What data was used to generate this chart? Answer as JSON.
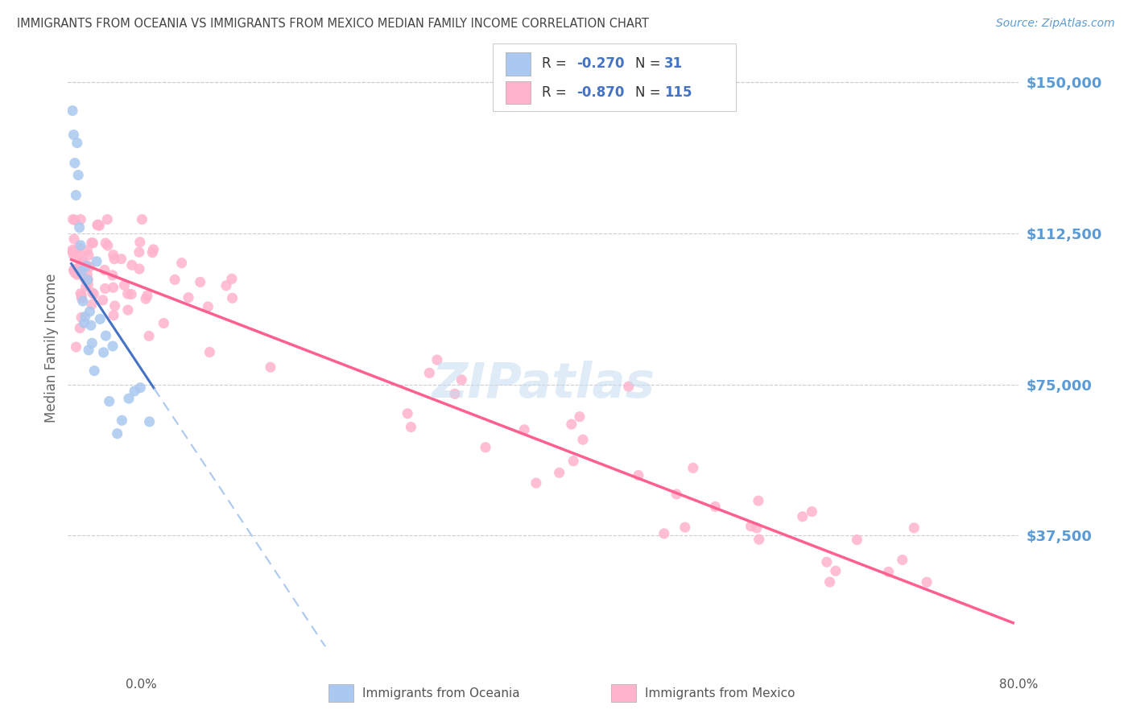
{
  "title": "IMMIGRANTS FROM OCEANIA VS IMMIGRANTS FROM MEXICO MEDIAN FAMILY INCOME CORRELATION CHART",
  "source": "Source: ZipAtlas.com",
  "ylabel": "Median Family Income",
  "ytick_labels": [
    "$37,500",
    "$75,000",
    "$112,500",
    "$150,000"
  ],
  "ytick_values": [
    37500,
    75000,
    112500,
    150000
  ],
  "ymin": 10000,
  "ymax": 158000,
  "xmin": -0.003,
  "xmax": 0.825,
  "legend_label_oceania": "Immigrants from Oceania",
  "legend_label_mexico": "Immigrants from Mexico",
  "watermark": "ZIPatlas",
  "title_color": "#444444",
  "source_color": "#5b9bd5",
  "ytick_color": "#5b9bd5",
  "oceania_color": "#aac8f0",
  "oceania_edge_color": "#aac8f0",
  "oceania_line_color": "#4472c4",
  "mexico_color": "#ffb3cc",
  "mexico_edge_color": "#ffb3cc",
  "mexico_line_color": "#ff6090",
  "dashed_line_color": "#aac8f0",
  "grid_color": "#cccccc",
  "legend_text_color": "#333333",
  "legend_value_color": "#4472c4",
  "background_color": "#ffffff",
  "oceania_line_intercept": 105000,
  "oceania_line_slope": -430000,
  "mexico_line_intercept": 106000,
  "mexico_line_slope": -110000
}
